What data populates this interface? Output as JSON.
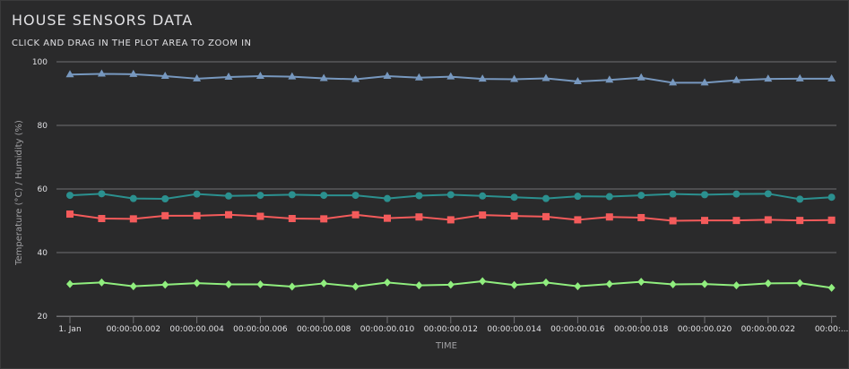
{
  "header": {
    "title": "HOUSE SENSORS DATA",
    "subtitle": "CLICK AND DRAG IN THE PLOT AREA TO ZOOM IN"
  },
  "colors": {
    "background": "#2a2a2b",
    "grid": "#707073",
    "text": "#e0e0e3",
    "axis_title": "#a0a0a3"
  },
  "chart_data": {
    "type": "line",
    "title": "HOUSE SENSORS DATA",
    "subtitle": "CLICK AND DRAG IN THE PLOT AREA TO ZOOM IN",
    "xlabel": "TIME",
    "ylabel": "Temperature (°C) / Humidity (%)",
    "ylim": [
      20,
      100
    ],
    "yticks": [
      20,
      40,
      60,
      80,
      100
    ],
    "grid": true,
    "legend": "none",
    "x_tick_labels": [
      "1. Jan",
      "00:00:00.002",
      "00:00:00.004",
      "00:00:00.006",
      "00:00:00.008",
      "00:00:00.010",
      "00:00:00.012",
      "00:00:00.014",
      "00:00:00.016",
      "00:00:00.018",
      "00:00:00.020",
      "00:00:00.022",
      "00:00:..."
    ],
    "x": [
      0,
      0.001,
      0.002,
      0.003,
      0.004,
      0.005,
      0.006,
      0.007,
      0.008,
      0.009,
      0.01,
      0.011,
      0.012,
      0.013,
      0.014,
      0.015,
      0.016,
      0.017,
      0.018,
      0.019,
      0.02,
      0.021,
      0.022,
      0.023,
      0.024
    ],
    "x_unit": "seconds since 1. Jan 00:00:00",
    "series": [
      {
        "marker": "triangle",
        "color": "#7798bf",
        "values": [
          96.0,
          96.2,
          96.1,
          95.5,
          94.7,
          95.2,
          95.5,
          95.3,
          94.8,
          94.5,
          95.5,
          95.0,
          95.3,
          94.6,
          94.5,
          94.8,
          93.8,
          94.3,
          95.0,
          93.4,
          93.4,
          94.2,
          94.6,
          94.7,
          94.7
        ]
      },
      {
        "marker": "circle",
        "color": "#2b908f",
        "values": [
          58.0,
          58.5,
          57.0,
          56.9,
          58.4,
          57.8,
          58.0,
          58.2,
          58.0,
          58.0,
          57.0,
          57.9,
          58.2,
          57.8,
          57.4,
          57.0,
          57.7,
          57.6,
          58.0,
          58.4,
          58.2,
          58.4,
          58.5,
          56.8,
          57.4
        ]
      },
      {
        "marker": "square",
        "color": "#f45b5b",
        "values": [
          52.1,
          50.7,
          50.6,
          51.6,
          51.6,
          51.9,
          51.4,
          50.7,
          50.6,
          51.9,
          50.8,
          51.2,
          50.3,
          51.8,
          51.5,
          51.3,
          50.3,
          51.2,
          51.0,
          50.0,
          50.1,
          50.1,
          50.3,
          50.1,
          50.2
        ]
      },
      {
        "marker": "diamond",
        "color": "#90ee7e",
        "values": [
          30.1,
          30.6,
          29.4,
          29.9,
          30.4,
          30.0,
          30.0,
          29.3,
          30.3,
          29.3,
          30.6,
          29.7,
          29.9,
          31.0,
          29.8,
          30.6,
          29.4,
          30.1,
          30.8,
          30.0,
          30.1,
          29.7,
          30.3,
          30.4,
          28.9
        ]
      }
    ]
  }
}
